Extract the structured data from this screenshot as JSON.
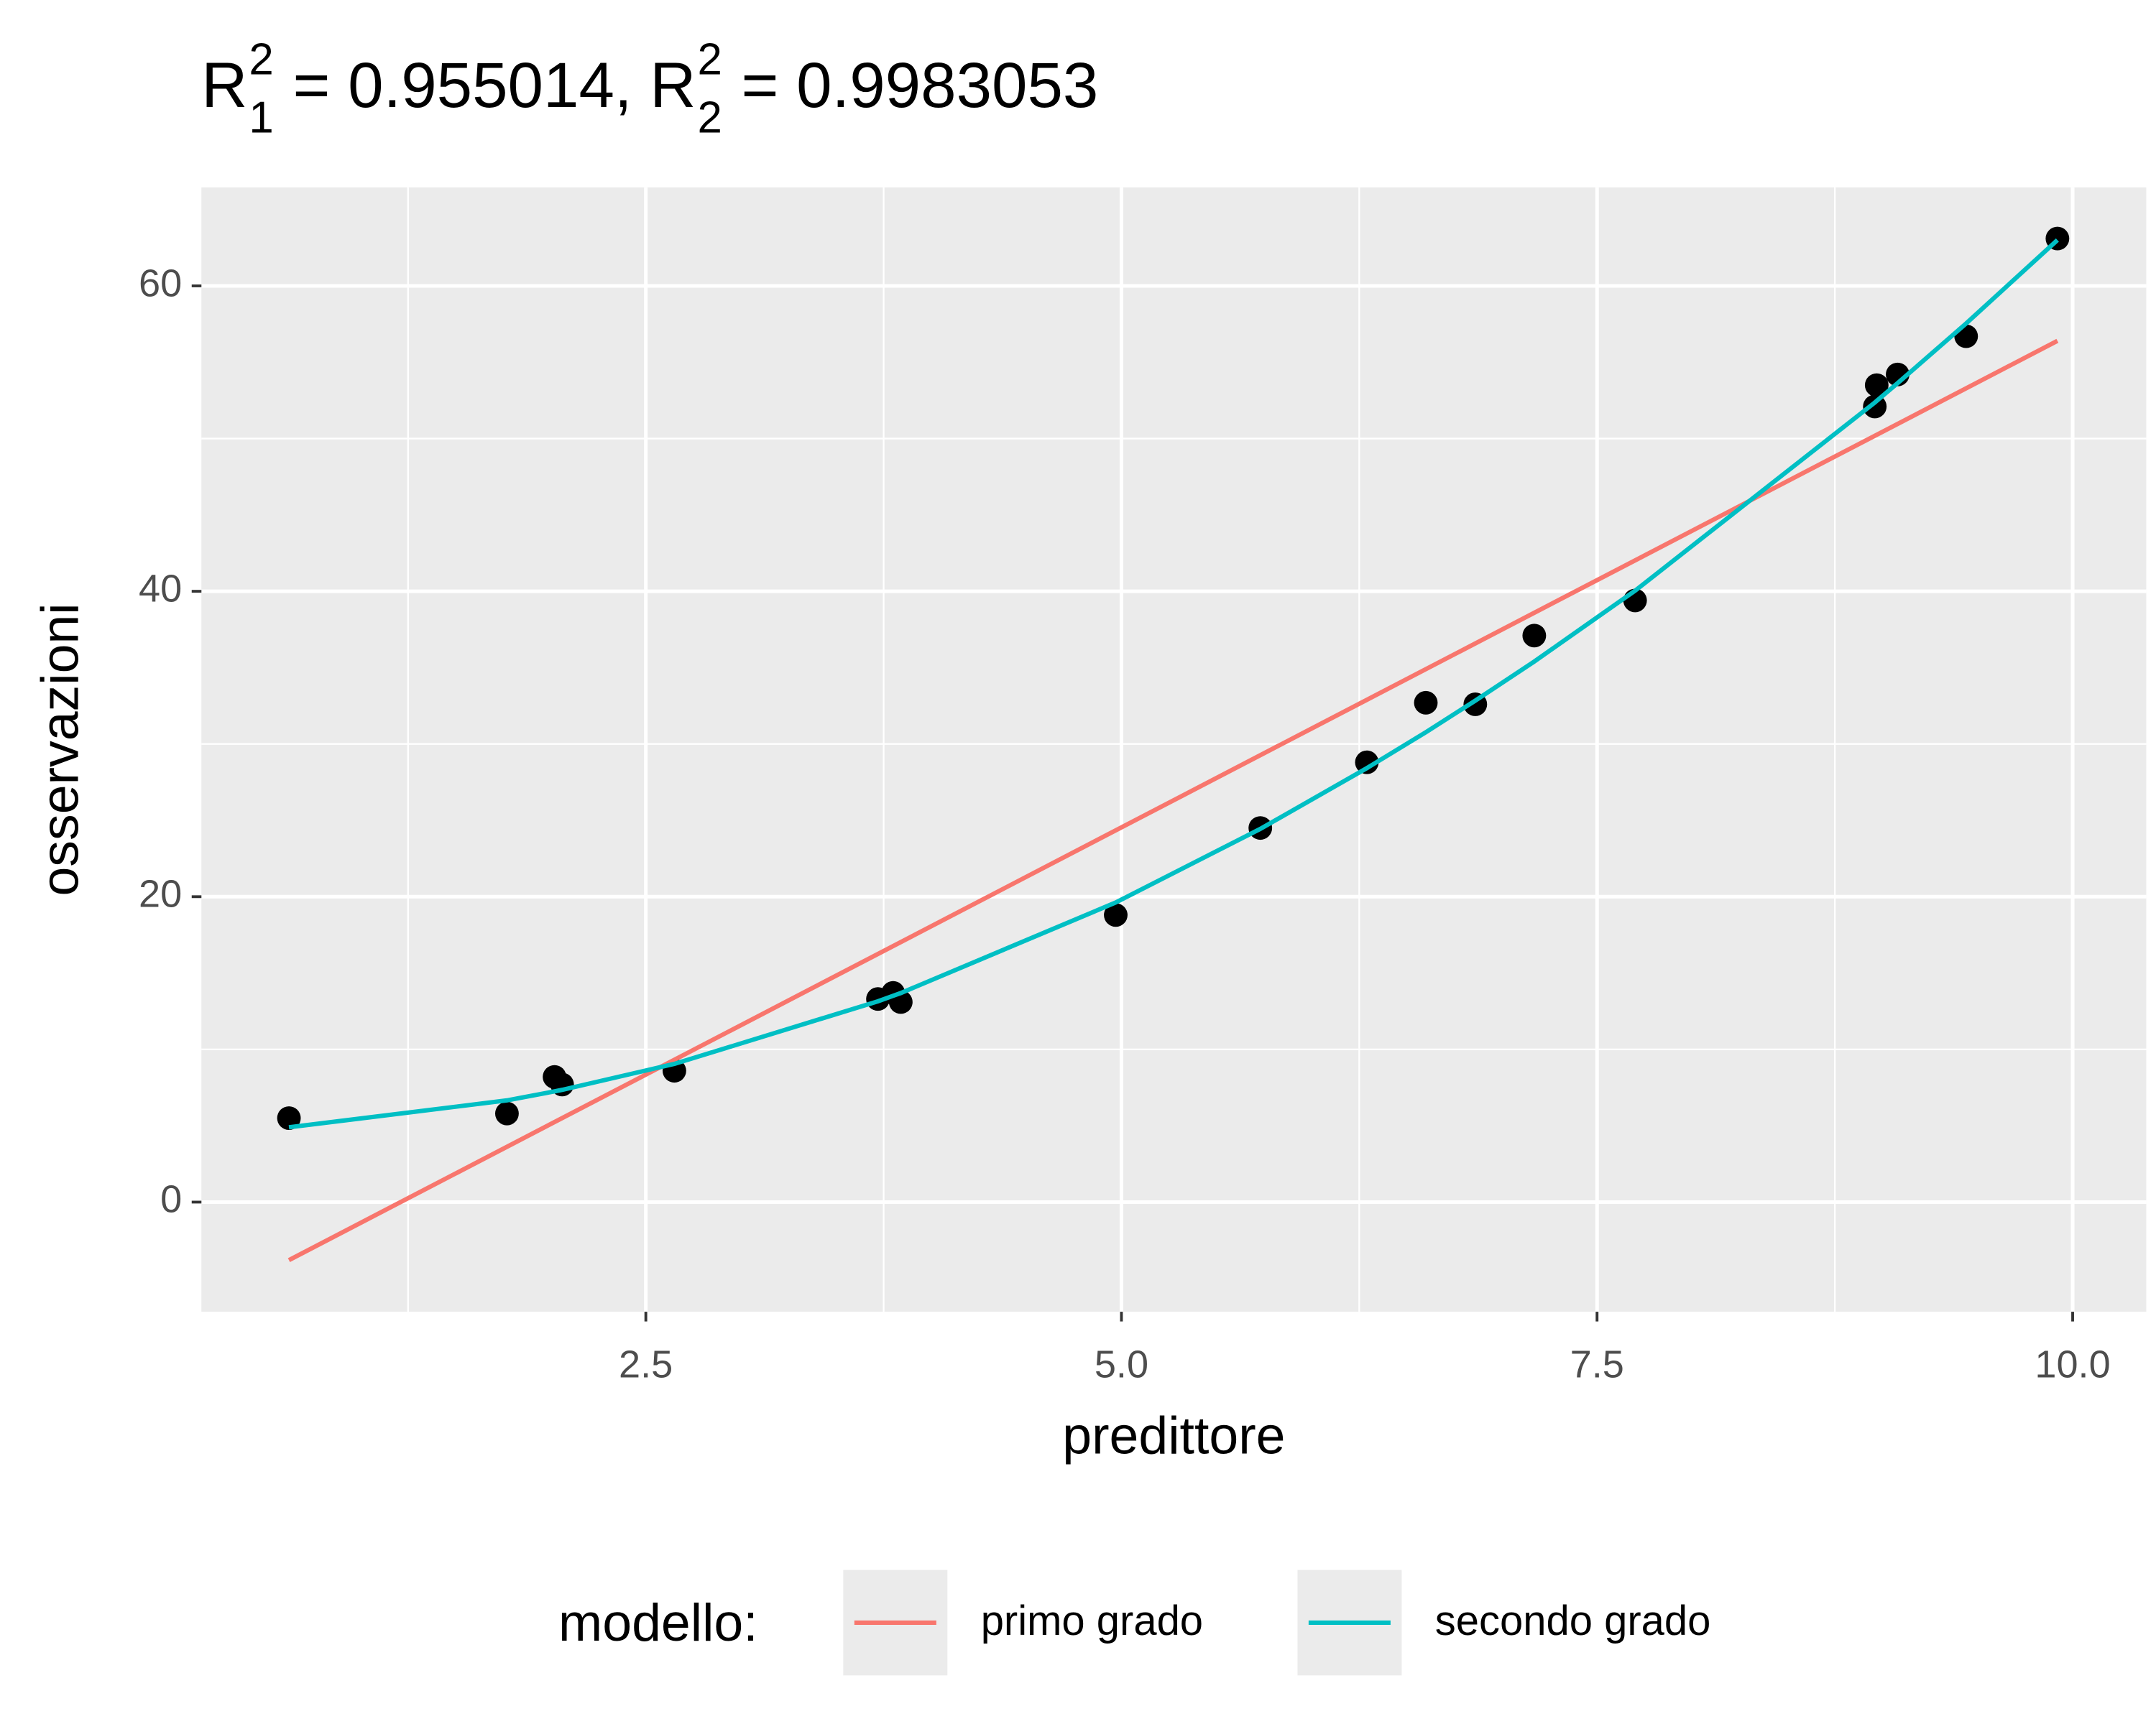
{
  "chart_data": {
    "type": "scatter",
    "title": [
      {
        "base": "R",
        "sub": "1",
        "sup": "2",
        "rest": " = 0.955014, "
      },
      {
        "base": "R",
        "sub": "2",
        "sup": "2",
        "rest": " = 0.9983053"
      }
    ],
    "x_label": "predittore",
    "y_label": "osservazioni",
    "xlim": [
      0.164,
      10.387
    ],
    "ylim": [
      -7.18,
      66.45
    ],
    "xticks": [
      2.5,
      {
        "value": 5.0,
        "label": "5.0"
      },
      7.5,
      {
        "value": 10.0,
        "label": "10.0"
      }
    ],
    "yticks": [
      0,
      20,
      40,
      60
    ],
    "xminorticks": [
      1.25,
      3.75,
      6.25,
      8.75
    ],
    "yminorticks": [
      10,
      30,
      50
    ],
    "grid": true,
    "points": {
      "color": "#000000",
      "x": [
        0.624,
        1.77,
        2.02,
        2.06,
        2.65,
        3.72,
        3.8,
        3.84,
        4.97,
        5.73,
        6.29,
        6.6,
        6.86,
        7.17,
        7.7,
        8.96,
        8.97,
        9.08,
        9.44,
        9.92
      ],
      "values": [
        5.5,
        5.8,
        8.2,
        7.7,
        8.6,
        13.3,
        13.7,
        13.1,
        18.8,
        24.5,
        28.8,
        32.7,
        32.6,
        37.1,
        39.4,
        52.1,
        53.5,
        54.2,
        56.7,
        63.1
      ]
    },
    "legend_title": "modello:",
    "legend_position": "bottom",
    "series": [
      {
        "name": "primo grado",
        "color": "#F8766D",
        "x": [
          0.624,
          9.92
        ],
        "values": [
          -3.8,
          56.4
        ]
      },
      {
        "name": "secondo grado",
        "color": "#00BFC4",
        "x": [
          0.624,
          1.77,
          2.02,
          2.06,
          2.65,
          3.72,
          3.8,
          3.84,
          4.97,
          5.73,
          6.29,
          6.6,
          6.86,
          7.17,
          7.7,
          8.96,
          8.97,
          9.08,
          9.44,
          9.92
        ],
        "values": [
          4.9,
          6.66,
          7.25,
          7.35,
          9.05,
          13.15,
          13.51,
          13.69,
          19.62,
          24.44,
          28.42,
          30.77,
          32.84,
          35.4,
          40.04,
          52.36,
          52.47,
          53.63,
          57.54,
          63.0
        ]
      }
    ]
  }
}
